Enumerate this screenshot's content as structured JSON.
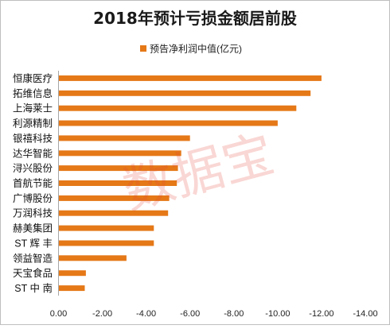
{
  "chart_data": {
    "type": "bar",
    "orientation": "horizontal",
    "title": "2018年预计亏损金额居前股",
    "legend_position": "top",
    "x_reversed": true,
    "xlim": [
      0,
      -14
    ],
    "xticks": [
      "0.00",
      "-2.00",
      "-4.00",
      "-6.00",
      "-8.00",
      "-10.00",
      "-12.00",
      "-14.00"
    ],
    "xtick_values": [
      0,
      -2,
      -4,
      -6,
      -8,
      -10,
      -12,
      -14
    ],
    "grid": false,
    "categories": [
      "恒康医疗",
      "拓维信息",
      "上海莱士",
      "利源精制",
      "银禧科技",
      "达华智能",
      "浔兴股份",
      "首航节能",
      "广博股份",
      "万润科技",
      "赫美集团",
      "ST 辉 丰",
      "领益智造",
      "天宝食品",
      "ST 中 南"
    ],
    "series": [
      {
        "name": "预告净利润中值(亿元)",
        "color": "#e57817",
        "values": [
          -12.0,
          -11.5,
          -10.85,
          -10.0,
          -6.0,
          -5.6,
          -5.45,
          -5.4,
          -5.05,
          -5.0,
          -4.35,
          -4.35,
          -3.1,
          -1.25,
          -1.2
        ]
      }
    ],
    "watermark": "数据宝"
  }
}
